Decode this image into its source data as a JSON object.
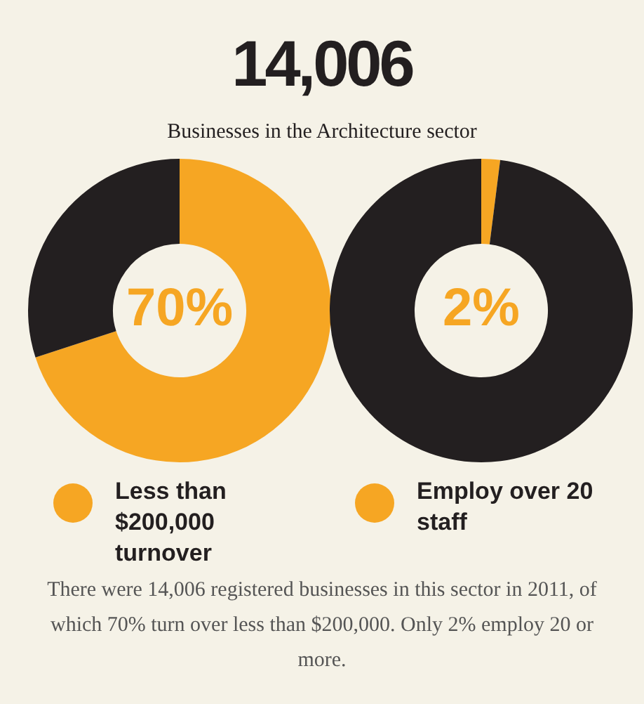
{
  "chart_data": [
    {
      "type": "donut",
      "title": "14,006",
      "subtitle": "Businesses in the Architecture sector",
      "categories": [
        "Less than $200,000 turnover",
        null
      ],
      "values": [
        70,
        30
      ],
      "colors": [
        "#f6a623",
        "#231f20"
      ],
      "value_labels": [
        "70%",
        null
      ],
      "legend": "bottom"
    },
    {
      "type": "donut",
      "categories": [
        "Employ over 20 staff",
        null
      ],
      "values": [
        2,
        98
      ],
      "colors": [
        "#f6a623",
        "#231f20"
      ],
      "value_labels": [
        "2%",
        null
      ],
      "legend": "bottom",
      "annotations": [
        "There were 14,006 registered businesses in this sector in 2011, of which 70% turn over less than $200,000. Only 2% employ 20 or more."
      ]
    }
  ]
}
